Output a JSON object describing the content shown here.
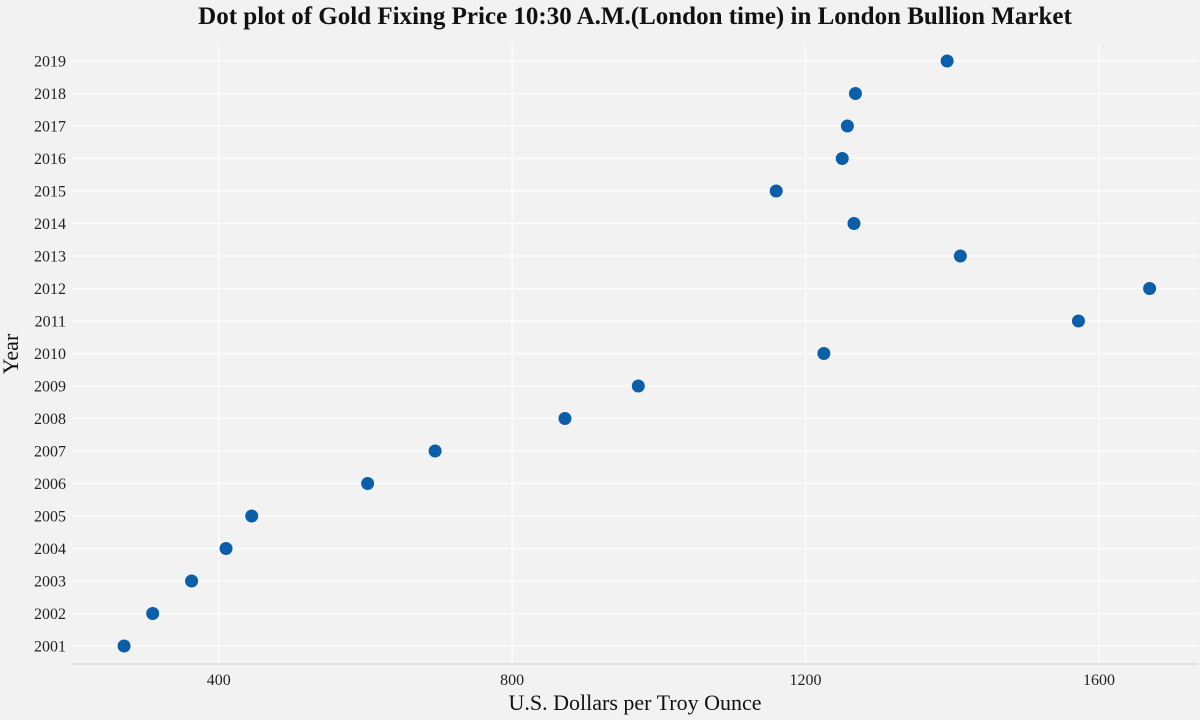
{
  "chart_data": {
    "type": "scatter",
    "title": "Dot plot of Gold Fixing Price 10:30 A.M.(London time) in London Bullion Market",
    "xlabel": "U.S. Dollars per Troy Ounce",
    "ylabel": "Year",
    "xlim": [
      200,
      1735
    ],
    "x_ticks": [
      400,
      800,
      1200,
      1600
    ],
    "categories": [
      "2001",
      "2002",
      "2003",
      "2004",
      "2005",
      "2006",
      "2007",
      "2008",
      "2009",
      "2010",
      "2011",
      "2012",
      "2013",
      "2014",
      "2015",
      "2016",
      "2017",
      "2018",
      "2019"
    ],
    "values": [
      271,
      310,
      363,
      410,
      445,
      603,
      695,
      872,
      972,
      1225,
      1572,
      1669,
      1411,
      1266,
      1160,
      1250,
      1257,
      1268,
      1393
    ],
    "grid": true,
    "legend": "none",
    "colors": {
      "point": "#0b5ea8",
      "background": "#f2f2f2",
      "grid": "#ffffff"
    }
  }
}
